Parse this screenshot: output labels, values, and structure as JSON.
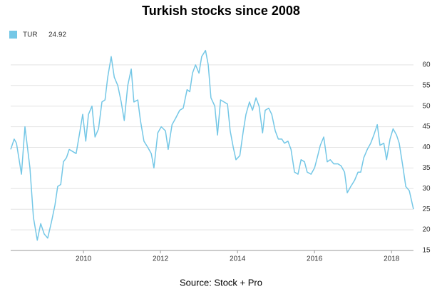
{
  "chart_data": {
    "type": "line",
    "title": "Turkish stocks since 2008",
    "source": "Source: Stock + Pro",
    "legend_value": "24.92",
    "series": [
      {
        "name": "TUR",
        "color": "#74c7e6",
        "x": [
          2008.11,
          2008.2,
          2008.26,
          2008.39,
          2008.48,
          2008.61,
          2008.7,
          2008.8,
          2008.89,
          2008.98,
          2009.07,
          2009.17,
          2009.26,
          2009.33,
          2009.41,
          2009.48,
          2009.56,
          2009.63,
          2009.72,
          2009.81,
          2009.91,
          2009.98,
          2010.06,
          2010.13,
          2010.22,
          2010.3,
          2010.39,
          2010.48,
          2010.56,
          2010.63,
          2010.72,
          2010.8,
          2010.89,
          2010.98,
          2011.06,
          2011.15,
          2011.24,
          2011.31,
          2011.41,
          2011.48,
          2011.57,
          2011.67,
          2011.76,
          2011.83,
          2011.93,
          2012.02,
          2012.13,
          2012.2,
          2012.3,
          2012.39,
          2012.5,
          2012.59,
          2012.69,
          2012.76,
          2012.83,
          2012.91,
          2013.0,
          2013.07,
          2013.17,
          2013.24,
          2013.31,
          2013.41,
          2013.48,
          2013.56,
          2013.65,
          2013.74,
          2013.81,
          2013.89,
          2013.96,
          2014.06,
          2014.15,
          2014.22,
          2014.31,
          2014.39,
          2014.48,
          2014.56,
          2014.65,
          2014.72,
          2014.81,
          2014.89,
          2014.98,
          2015.06,
          2015.15,
          2015.22,
          2015.31,
          2015.39,
          2015.48,
          2015.57,
          2015.65,
          2015.74,
          2015.81,
          2015.91,
          2016.0,
          2016.07,
          2016.15,
          2016.24,
          2016.33,
          2016.41,
          2016.5,
          2016.61,
          2016.69,
          2016.78,
          2016.85,
          2016.94,
          2017.04,
          2017.13,
          2017.2,
          2017.28,
          2017.37,
          2017.46,
          2017.54,
          2017.63,
          2017.7,
          2017.8,
          2017.87,
          2017.96,
          2018.04,
          2018.13,
          2018.2,
          2018.3,
          2018.37,
          2018.46,
          2018.57
        ],
        "values": [
          39.5,
          42,
          41,
          33.5,
          45,
          35,
          23,
          17.5,
          21.5,
          19,
          18,
          22,
          26,
          30.5,
          31,
          36.5,
          37.5,
          39.5,
          39,
          38.5,
          44,
          48,
          41.5,
          48,
          50,
          42.5,
          44.5,
          51,
          51.5,
          57,
          62,
          57,
          55,
          51,
          46.5,
          55,
          59,
          51,
          51.5,
          46.5,
          41.5,
          40,
          38.5,
          35,
          43.5,
          45,
          44,
          39.5,
          45.5,
          47,
          49,
          49.5,
          54,
          53.5,
          58,
          60,
          58,
          62,
          63.5,
          60,
          52,
          50,
          43,
          51.5,
          51,
          50.5,
          44,
          40,
          37,
          38,
          44,
          48,
          51,
          49,
          52,
          50,
          43.5,
          49,
          49.5,
          48,
          44,
          42,
          42,
          41,
          41.5,
          39.5,
          34,
          33.5,
          37,
          36.5,
          34,
          33.5,
          35,
          37.5,
          40.5,
          42.5,
          36.5,
          37,
          36,
          36,
          35.5,
          34,
          29,
          30.5,
          32,
          34,
          34,
          37.5,
          39.5,
          41,
          43,
          45.5,
          40.5,
          41,
          37,
          42,
          44.5,
          43,
          41,
          35,
          30.5,
          29.5,
          25
        ]
      }
    ],
    "xlim": [
      2008.11,
      2018.57
    ],
    "xticks": [
      2010,
      2012,
      2014,
      2016,
      2018
    ],
    "ylim": [
      15,
      65
    ],
    "yticks": [
      15,
      20,
      25,
      30,
      35,
      40,
      45,
      50,
      55,
      60
    ],
    "grid": true
  }
}
